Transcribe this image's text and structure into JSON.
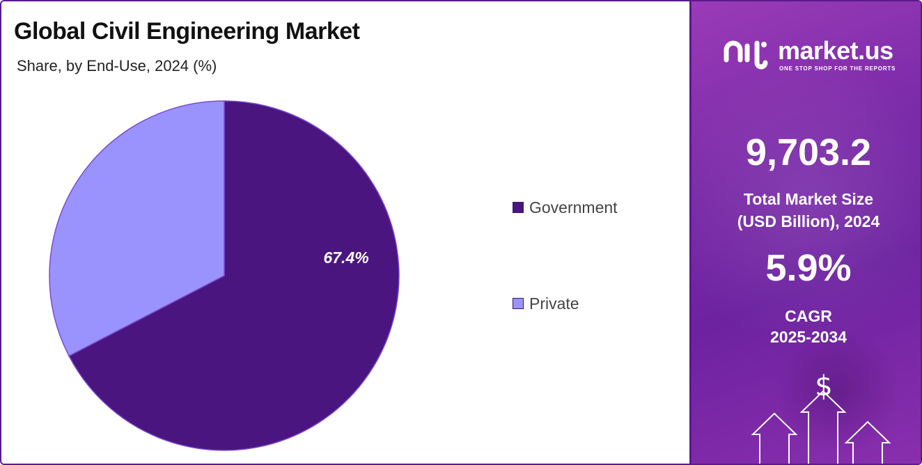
{
  "title": "Global Civil Engineering Market",
  "subtitle": "Share, by End-Use, 2024 (%)",
  "chart_data": {
    "type": "pie",
    "categories": [
      "Government",
      "Private"
    ],
    "values": [
      67.4,
      32.6
    ],
    "data_labels": [
      "67.4%",
      ""
    ],
    "colors": [
      "#4b1580",
      "#9b93fd"
    ],
    "legend_placement": "right"
  },
  "legend": {
    "items": [
      {
        "label": "Government",
        "color": "#4b1580"
      },
      {
        "label": "Private",
        "color": "#9b93fd"
      }
    ]
  },
  "brand": {
    "name": "market.us",
    "tagline": "ONE STOP SHOP FOR THE REPORTS",
    "logo_icon": "market-us-logo-icon"
  },
  "stats": {
    "market_size_value": "9,703.2",
    "market_size_label_line1": "Total Market Size",
    "market_size_label_line2": "(USD Billion), 2024",
    "cagr_value": "5.9%",
    "cagr_label_line1": "CAGR",
    "cagr_label_line2": "2025-2034"
  },
  "decor": {
    "currency_symbol": "$",
    "icon": "rising-arrows-icon"
  }
}
